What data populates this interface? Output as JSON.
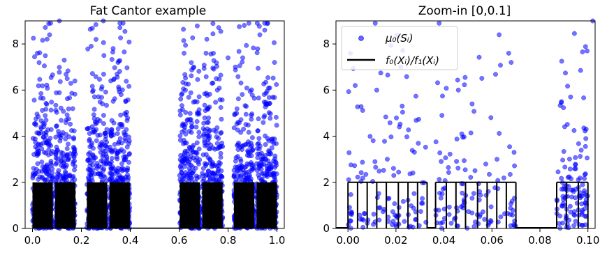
{
  "chart_data": [
    {
      "type": "scatter",
      "title": "Fat Cantor example",
      "xlabel": "",
      "ylabel": "",
      "xlim": [
        -0.03,
        1.03
      ],
      "ylim": [
        0,
        9
      ],
      "xticks": [
        0.0,
        0.2,
        0.4,
        0.6,
        0.8,
        1.0
      ],
      "xtick_labels": [
        "0.0",
        "0.2",
        "0.4",
        "0.6",
        "0.8",
        "1.0"
      ],
      "yticks": [
        0,
        2,
        4,
        6,
        8
      ],
      "ytick_labels": [
        "0",
        "2",
        "4",
        "6",
        "8"
      ],
      "grid": false,
      "legend": null,
      "scatter_color": "#0000ff",
      "step_color": "#000000",
      "support_intervals": [
        [
          0.0,
          0.0833
        ],
        [
          0.0926,
          0.1759
        ],
        [
          0.2222,
          0.3056
        ],
        [
          0.3148,
          0.3981
        ],
        [
          0.6019,
          0.6852
        ],
        [
          0.6944,
          0.7778
        ],
        [
          0.8241,
          0.9074
        ],
        [
          0.9167,
          1.0
        ]
      ],
      "step_value": 2.0,
      "point_count_per_interval": 320,
      "outliers": [
        [
          0.02,
          7.6
        ],
        [
          0.07,
          8.4
        ],
        [
          0.11,
          9.0
        ],
        [
          0.13,
          7.3
        ],
        [
          0.24,
          7.9
        ],
        [
          0.26,
          8.2
        ],
        [
          0.29,
          9.0
        ],
        [
          0.33,
          7.8
        ],
        [
          0.35,
          7.2
        ],
        [
          0.62,
          7.6
        ],
        [
          0.66,
          7.0
        ],
        [
          0.71,
          7.6
        ],
        [
          0.74,
          7.6
        ],
        [
          0.8,
          7.4
        ],
        [
          0.83,
          7.0
        ],
        [
          0.86,
          7.4
        ],
        [
          0.93,
          8.4
        ],
        [
          0.95,
          8.6
        ],
        [
          0.99,
          7.2
        ]
      ]
    },
    {
      "type": "scatter",
      "title": "Zoom-in [0,0.1]",
      "xlabel": "",
      "ylabel": "",
      "xlim": [
        -0.005,
        0.103
      ],
      "ylim": [
        0,
        9
      ],
      "xticks": [
        0.0,
        0.02,
        0.04,
        0.06,
        0.08,
        0.1
      ],
      "xtick_labels": [
        "0.00",
        "0.02",
        "0.04",
        "0.06",
        "0.08",
        "0.10"
      ],
      "yticks": [
        0,
        2,
        4,
        6,
        8
      ],
      "ytick_labels": [
        "0",
        "2",
        "4",
        "6",
        "8"
      ],
      "grid": false,
      "legend": {
        "placement": "top-left",
        "entries": [
          {
            "label": "μ₀(Sᵢ)",
            "marker": "dot"
          },
          {
            "label": "f₀(Xᵢ)/f₁(Xᵢ)",
            "marker": "line"
          }
        ]
      },
      "scatter_color": "#0000ff",
      "step_color": "#000000",
      "support_intervals": [
        [
          0.0,
          0.033
        ],
        [
          0.0365,
          0.07
        ],
        [
          0.087,
          0.1
        ]
      ],
      "step_value": 2.0,
      "step_boundaries": [
        0.0,
        0.004,
        0.008,
        0.012,
        0.016,
        0.021,
        0.025,
        0.029,
        0.033,
        0.0365,
        0.041,
        0.045,
        0.049,
        0.054,
        0.058,
        0.062,
        0.066,
        0.07,
        0.087,
        0.091,
        0.096,
        0.1
      ],
      "point_count_per_interval": 120,
      "outliers": [
        [
          0.001,
          7.6
        ],
        [
          0.003,
          6.2
        ],
        [
          0.012,
          6.0
        ],
        [
          0.022,
          7.0
        ],
        [
          0.046,
          6.0
        ],
        [
          0.063,
          8.4
        ],
        [
          0.067,
          7.6
        ],
        [
          0.068,
          7.2
        ],
        [
          0.089,
          5.5
        ],
        [
          0.102,
          9.0
        ]
      ]
    }
  ]
}
